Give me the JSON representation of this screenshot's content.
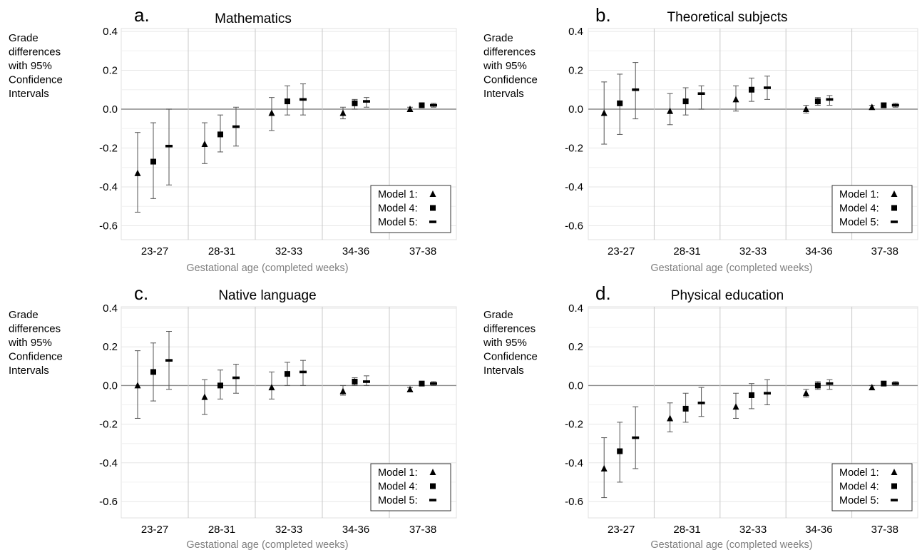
{
  "figure": {
    "ylabel_lines": [
      "Grade",
      "differences",
      "with 95%",
      "Confidence",
      "Intervals"
    ],
    "legend": [
      {
        "label": "Model 1:",
        "marker": "triangle"
      },
      {
        "label": "Model 4:",
        "marker": "square"
      },
      {
        "label": "Model 5:",
        "marker": "dash"
      }
    ],
    "colors": {
      "marker": "#000000",
      "grid": "#c8c8c8",
      "axis_frame": "#bdbdbd",
      "xlabel": "#7f7f7f",
      "text": "#000000"
    }
  },
  "chart_data": [
    {
      "type": "scatter",
      "panel_letter": "a.",
      "title": "Mathematics",
      "xlabel": "Gestational age (completed weeks)",
      "categories": [
        "23-27",
        "28-31",
        "32-33",
        "34-36",
        "37-38"
      ],
      "ylim": [
        -0.7,
        0.4
      ],
      "yticks": [
        "0.4",
        "0.2",
        "0.0",
        "-0.2",
        "-0.4",
        "-0.6"
      ],
      "grid": true,
      "legend_position": "bottom-right",
      "series": [
        {
          "name": "Model 1:",
          "values": [
            -0.33,
            -0.18,
            -0.02,
            -0.02,
            0.0
          ],
          "ci_low": [
            -0.53,
            -0.28,
            -0.11,
            -0.05,
            -0.01
          ],
          "ci_high": [
            -0.12,
            -0.07,
            0.06,
            0.01,
            0.01
          ]
        },
        {
          "name": "Model 4:",
          "values": [
            -0.27,
            -0.13,
            0.04,
            0.03,
            0.02
          ],
          "ci_low": [
            -0.46,
            -0.22,
            -0.03,
            0.0,
            0.01
          ],
          "ci_high": [
            -0.07,
            -0.03,
            0.12,
            0.05,
            0.03
          ]
        },
        {
          "name": "Model 5:",
          "values": [
            -0.19,
            -0.09,
            0.05,
            0.04,
            0.02
          ],
          "ci_low": [
            -0.39,
            -0.19,
            -0.03,
            0.01,
            0.01
          ],
          "ci_high": [
            0.0,
            0.01,
            0.13,
            0.06,
            0.03
          ]
        }
      ]
    },
    {
      "type": "scatter",
      "panel_letter": "b.",
      "title": "Theoretical subjects",
      "xlabel": "Gestational age (completed weeks)",
      "categories": [
        "23-27",
        "28-31",
        "32-33",
        "34-36",
        "37-38"
      ],
      "ylim": [
        -0.7,
        0.4
      ],
      "yticks": [
        "0.4",
        "0.2",
        "0.0",
        "-0.2",
        "-0.4",
        "-0.6"
      ],
      "grid": true,
      "legend_position": "bottom-right",
      "series": [
        {
          "name": "Model 1:",
          "values": [
            -0.02,
            -0.01,
            0.05,
            0.0,
            0.01
          ],
          "ci_low": [
            -0.18,
            -0.08,
            -0.01,
            -0.02,
            0.0
          ],
          "ci_high": [
            0.14,
            0.08,
            0.12,
            0.02,
            0.02
          ]
        },
        {
          "name": "Model 4:",
          "values": [
            0.03,
            0.04,
            0.1,
            0.04,
            0.02
          ],
          "ci_low": [
            -0.13,
            -0.03,
            0.04,
            0.02,
            0.01
          ],
          "ci_high": [
            0.18,
            0.11,
            0.16,
            0.06,
            0.03
          ]
        },
        {
          "name": "Model 5:",
          "values": [
            0.1,
            0.08,
            0.11,
            0.05,
            0.02
          ],
          "ci_low": [
            -0.05,
            0.0,
            0.05,
            0.02,
            0.01
          ],
          "ci_high": [
            0.24,
            0.12,
            0.17,
            0.07,
            0.03
          ]
        }
      ]
    },
    {
      "type": "scatter",
      "panel_letter": "c.",
      "title": "Native language",
      "xlabel": "Gestational age (completed weeks)",
      "categories": [
        "23-27",
        "28-31",
        "32-33",
        "34-36",
        "37-38"
      ],
      "ylim": [
        -0.7,
        0.4
      ],
      "yticks": [
        "0.4",
        "0.2",
        "0.0",
        "-0.2",
        "-0.4",
        "-0.6"
      ],
      "grid": true,
      "legend_position": "bottom-right",
      "series": [
        {
          "name": "Model 1:",
          "values": [
            0.0,
            -0.06,
            -0.01,
            -0.03,
            -0.02
          ],
          "ci_low": [
            -0.17,
            -0.15,
            -0.07,
            -0.05,
            -0.03
          ],
          "ci_high": [
            0.18,
            0.03,
            0.07,
            0.0,
            -0.01
          ]
        },
        {
          "name": "Model 4:",
          "values": [
            0.07,
            0.0,
            0.06,
            0.02,
            0.01
          ],
          "ci_low": [
            -0.08,
            -0.07,
            0.0,
            0.0,
            0.0
          ],
          "ci_high": [
            0.22,
            0.08,
            0.12,
            0.04,
            0.02
          ]
        },
        {
          "name": "Model 5:",
          "values": [
            0.13,
            0.04,
            0.07,
            0.02,
            0.01
          ],
          "ci_low": [
            -0.02,
            -0.04,
            0.0,
            0.0,
            0.0
          ],
          "ci_high": [
            0.28,
            0.11,
            0.13,
            0.05,
            0.02
          ]
        }
      ]
    },
    {
      "type": "scatter",
      "panel_letter": "d.",
      "title": "Physical education",
      "xlabel": "Gestational age (completed weeks)",
      "categories": [
        "23-27",
        "28-31",
        "32-33",
        "34-36",
        "37-38"
      ],
      "ylim": [
        -0.7,
        0.4
      ],
      "yticks": [
        "0.4",
        "0.2",
        "0.0",
        "-0.2",
        "-0.4",
        "-0.6"
      ],
      "grid": true,
      "legend_position": "bottom-right",
      "series": [
        {
          "name": "Model 1:",
          "values": [
            -0.43,
            -0.17,
            -0.11,
            -0.04,
            -0.01
          ],
          "ci_low": [
            -0.58,
            -0.24,
            -0.17,
            -0.06,
            -0.02
          ],
          "ci_high": [
            -0.27,
            -0.09,
            -0.04,
            -0.02,
            0.0
          ]
        },
        {
          "name": "Model 4:",
          "values": [
            -0.34,
            -0.12,
            -0.05,
            0.0,
            0.01
          ],
          "ci_low": [
            -0.5,
            -0.19,
            -0.12,
            -0.02,
            0.0
          ],
          "ci_high": [
            -0.19,
            -0.04,
            0.01,
            0.02,
            0.02
          ]
        },
        {
          "name": "Model 5:",
          "values": [
            -0.27,
            -0.09,
            -0.04,
            0.01,
            0.01
          ],
          "ci_low": [
            -0.43,
            -0.16,
            -0.1,
            -0.02,
            0.0
          ],
          "ci_high": [
            -0.11,
            -0.01,
            0.03,
            0.03,
            0.02
          ]
        }
      ]
    }
  ]
}
